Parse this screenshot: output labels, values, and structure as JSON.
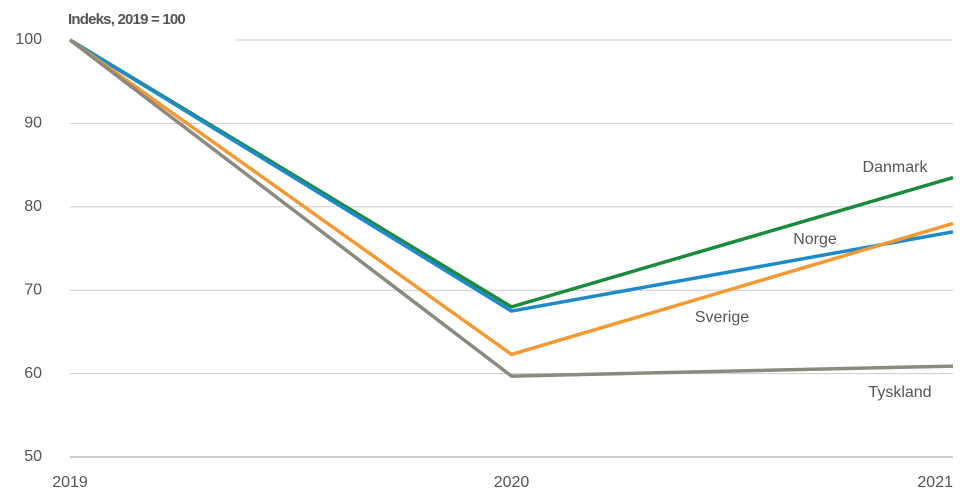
{
  "chart_data": {
    "type": "line",
    "title": "Indeks, 2019 = 100",
    "categories": [
      "2019",
      "2020",
      "2021"
    ],
    "series": [
      {
        "name": "Danmark",
        "color": "#1a8a3c",
        "values": [
          100,
          68,
          83.5
        ]
      },
      {
        "name": "Norge",
        "color": "#1e8bc8",
        "values": [
          100,
          67.5,
          77
        ]
      },
      {
        "name": "Sverige",
        "color": "#f39a34",
        "values": [
          100,
          62.3,
          78
        ]
      },
      {
        "name": "Tyskland",
        "color": "#8c8a7f",
        "values": [
          100,
          59.7,
          60.9
        ]
      }
    ],
    "ylim": [
      50,
      100
    ],
    "yticks": [
      50,
      60,
      70,
      80,
      90,
      100
    ],
    "grid": true
  }
}
